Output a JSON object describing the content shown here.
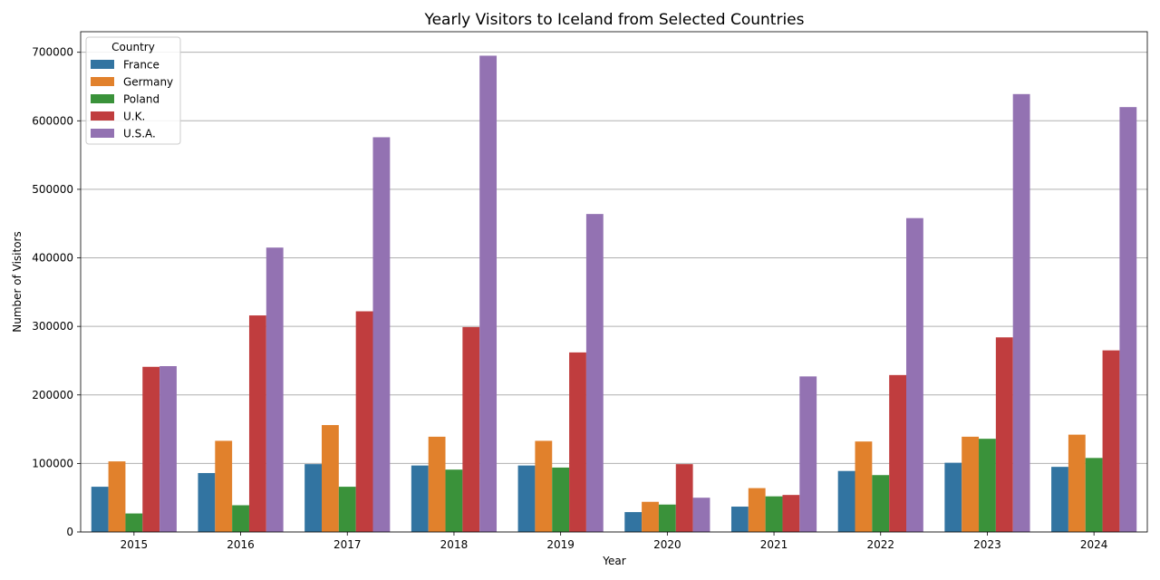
{
  "chart_data": {
    "type": "bar",
    "title": "Yearly Visitors to Iceland from Selected Countries",
    "xlabel": "Year",
    "ylabel": "Number of Visitors",
    "ylim": [
      0,
      730000
    ],
    "yticks": [
      0,
      100000,
      200000,
      300000,
      400000,
      500000,
      600000,
      700000
    ],
    "grid": "horizontal",
    "legend": {
      "title": "Country",
      "placement": "top-left"
    },
    "categories": [
      "2015",
      "2016",
      "2017",
      "2018",
      "2019",
      "2020",
      "2021",
      "2022",
      "2023",
      "2024"
    ],
    "series": [
      {
        "name": "France",
        "color": "#3274a1",
        "values": [
          66000,
          86000,
          99000,
          97000,
          97000,
          29000,
          37000,
          89000,
          101000,
          95000
        ]
      },
      {
        "name": "Germany",
        "color": "#e1812c",
        "values": [
          103000,
          133000,
          156000,
          139000,
          133000,
          44000,
          64000,
          132000,
          139000,
          142000
        ]
      },
      {
        "name": "Poland",
        "color": "#3a923a",
        "values": [
          27000,
          39000,
          66000,
          91000,
          94000,
          40000,
          52000,
          83000,
          136000,
          108000
        ]
      },
      {
        "name": "U.K.",
        "color": "#c03d3e",
        "values": [
          241000,
          316000,
          322000,
          299000,
          262000,
          99000,
          54000,
          229000,
          284000,
          265000
        ]
      },
      {
        "name": "U.S.A.",
        "color": "#9372b2",
        "values": [
          242000,
          415000,
          576000,
          695000,
          464000,
          50000,
          227000,
          458000,
          639000,
          620000
        ]
      }
    ]
  }
}
